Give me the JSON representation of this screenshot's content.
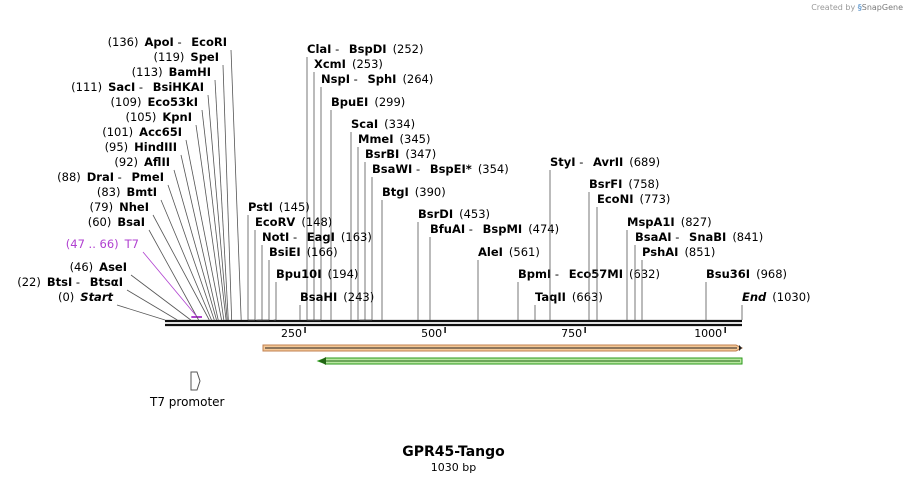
{
  "credit": {
    "text": "Created by",
    "brand": "SnapGene"
  },
  "sequence": {
    "name": "GPR45-Tango",
    "length_label": "1030 bp",
    "length": 1030
  },
  "axis_ticks": [
    "250",
    "500",
    "750",
    "1000"
  ],
  "feature_label": "T7 promoter",
  "colors": {
    "magenta": "#b040d0",
    "orange_fill": "#f5c896",
    "orange_stroke": "#c08050",
    "green_fill": "#b8e6a0",
    "green_stroke": "#2a9a1a",
    "line": "#555555"
  },
  "sites": [
    {
      "left": [
        {
          "t": "(136)"
        },
        {
          "t": "ApoI",
          "b": 1
        },
        {
          "t": " - "
        },
        {
          "t": "EcoRI",
          "b": 1
        }
      ],
      "pos": 136
    },
    {
      "left": [
        {
          "t": "(119)"
        },
        {
          "t": "SpeI",
          "b": 1
        }
      ],
      "pos": 119
    },
    {
      "left": [
        {
          "t": "(113)"
        },
        {
          "t": "BamHI",
          "b": 1
        }
      ],
      "pos": 113
    },
    {
      "left": [
        {
          "t": "(111)"
        },
        {
          "t": "SacI",
          "b": 1
        },
        {
          "t": " - "
        },
        {
          "t": "BsiHKAI",
          "b": 1
        }
      ],
      "pos": 111
    },
    {
      "left": [
        {
          "t": "(109)"
        },
        {
          "t": "Eco53kI",
          "b": 1
        }
      ],
      "pos": 109
    },
    {
      "left": [
        {
          "t": "(105)"
        },
        {
          "t": "KpnI",
          "b": 1
        }
      ],
      "pos": 105
    },
    {
      "left": [
        {
          "t": "(101)"
        },
        {
          "t": "Acc65I",
          "b": 1
        }
      ],
      "pos": 101
    },
    {
      "left": [
        {
          "t": "(95)"
        },
        {
          "t": "HindIII",
          "b": 1
        }
      ],
      "pos": 95
    },
    {
      "left": [
        {
          "t": "(92)"
        },
        {
          "t": "AflII",
          "b": 1
        }
      ],
      "pos": 92
    },
    {
      "left": [
        {
          "t": "(88)"
        },
        {
          "t": "DraI",
          "b": 1
        },
        {
          "t": " - "
        },
        {
          "t": "PmeI",
          "b": 1
        }
      ],
      "pos": 88
    },
    {
      "left": [
        {
          "t": "(83)"
        },
        {
          "t": "BmtI",
          "b": 1
        }
      ],
      "pos": 83
    },
    {
      "left": [
        {
          "t": "(79)"
        },
        {
          "t": "NheI",
          "b": 1
        }
      ],
      "pos": 79
    },
    {
      "left": [
        {
          "t": "(60)"
        },
        {
          "t": "BsaI",
          "b": 1
        }
      ],
      "pos": 60
    },
    {
      "left": [
        {
          "t": "(47 .. 66)",
          "c": "magenta"
        },
        {
          "t": "T7",
          "c": "magenta"
        }
      ],
      "pos": 56,
      "magenta": 1
    },
    {
      "left": [
        {
          "t": "(46)"
        },
        {
          "t": "AseI",
          "b": 1
        }
      ],
      "pos": 46
    },
    {
      "left": [
        {
          "t": "(22)"
        },
        {
          "t": "BtsI",
          "b": 1
        },
        {
          "t": " - "
        },
        {
          "t": "BtsαI",
          "b": 1
        }
      ],
      "pos": 22
    },
    {
      "left": [
        {
          "t": "(0)"
        },
        {
          "t": "Start",
          "b": 1,
          "i": 1
        }
      ],
      "pos": 0
    },
    {
      "right": [
        {
          "t": "ClaI",
          "b": 1
        },
        {
          "t": " - "
        },
        {
          "t": "BspDI",
          "b": 1
        },
        {
          "t": "(252)"
        }
      ],
      "pos": 252
    },
    {
      "right": [
        {
          "t": "XcmI",
          "b": 1
        },
        {
          "t": "(253)"
        }
      ],
      "pos": 253
    },
    {
      "right": [
        {
          "t": "NspI",
          "b": 1
        },
        {
          "t": " - "
        },
        {
          "t": "SphI",
          "b": 1
        },
        {
          "t": "(264)"
        }
      ],
      "pos": 264
    },
    {
      "right": [
        {
          "t": "BpuEI",
          "b": 1
        },
        {
          "t": "(299)"
        }
      ],
      "pos": 299
    },
    {
      "right": [
        {
          "t": "ScaI",
          "b": 1
        },
        {
          "t": "(334)"
        }
      ],
      "pos": 334
    },
    {
      "right": [
        {
          "t": "MmeI",
          "b": 1
        },
        {
          "t": "(345)"
        }
      ],
      "pos": 345
    },
    {
      "right": [
        {
          "t": "BsrBI",
          "b": 1
        },
        {
          "t": "(347)"
        }
      ],
      "pos": 347
    },
    {
      "right": [
        {
          "t": "BsaWI",
          "b": 1
        },
        {
          "t": " - "
        },
        {
          "t": "BspEI",
          "b": 1
        },
        {
          "t": "*",
          "b": 1
        },
        {
          "t": "(354)"
        }
      ],
      "pos": 354
    },
    {
      "right": [
        {
          "t": "BtgI",
          "b": 1
        },
        {
          "t": "(390)"
        }
      ],
      "pos": 390
    },
    {
      "right": [
        {
          "t": "PstI",
          "b": 1
        },
        {
          "t": "(145)"
        }
      ],
      "pos": 145
    },
    {
      "right": [
        {
          "t": "EcoRV",
          "b": 1
        },
        {
          "t": "(148)"
        }
      ],
      "pos": 148
    },
    {
      "right": [
        {
          "t": "NotI",
          "b": 1
        },
        {
          "t": " - "
        },
        {
          "t": "EagI",
          "b": 1
        },
        {
          "t": "(163)"
        }
      ],
      "pos": 163
    },
    {
      "right": [
        {
          "t": "BsiEI",
          "b": 1
        },
        {
          "t": "(166)"
        }
      ],
      "pos": 166
    },
    {
      "right": [
        {
          "t": "Bpu10I",
          "b": 1
        },
        {
          "t": "(194)"
        }
      ],
      "pos": 194
    },
    {
      "right": [
        {
          "t": "BsaHI",
          "b": 1
        },
        {
          "t": "(243)"
        }
      ],
      "pos": 243
    },
    {
      "right": [
        {
          "t": "BsrDI",
          "b": 1
        },
        {
          "t": "(453)"
        }
      ],
      "pos": 453
    },
    {
      "right": [
        {
          "t": "BfuAI",
          "b": 1
        },
        {
          "t": " - "
        },
        {
          "t": "BspMI",
          "b": 1
        },
        {
          "t": "(474)"
        }
      ],
      "pos": 474
    },
    {
      "right": [
        {
          "t": "AleI",
          "b": 1
        },
        {
          "t": "(561)"
        }
      ],
      "pos": 561
    },
    {
      "right": [
        {
          "t": "BpmI",
          "b": 1
        },
        {
          "t": " - "
        },
        {
          "t": "Eco57MI",
          "b": 1
        },
        {
          "t": "(632)"
        }
      ],
      "pos": 632
    },
    {
      "right": [
        {
          "t": "TaqII",
          "b": 1
        },
        {
          "t": "(663)"
        }
      ],
      "pos": 663
    },
    {
      "right": [
        {
          "t": "StyI",
          "b": 1
        },
        {
          "t": " - "
        },
        {
          "t": "AvrII",
          "b": 1
        },
        {
          "t": "(689)"
        }
      ],
      "pos": 689
    },
    {
      "right": [
        {
          "t": "BsrFI",
          "b": 1
        },
        {
          "t": "(758)"
        }
      ],
      "pos": 758
    },
    {
      "right": [
        {
          "t": "EcoNI",
          "b": 1
        },
        {
          "t": "(773)"
        }
      ],
      "pos": 773
    },
    {
      "right": [
        {
          "t": "MspA1I",
          "b": 1
        },
        {
          "t": "(827)"
        }
      ],
      "pos": 827
    },
    {
      "right": [
        {
          "t": "BsaAI",
          "b": 1
        },
        {
          "t": " - "
        },
        {
          "t": "SnaBI",
          "b": 1
        },
        {
          "t": "(841)"
        }
      ],
      "pos": 841
    },
    {
      "right": [
        {
          "t": "PshAI",
          "b": 1
        },
        {
          "t": "(851)"
        }
      ],
      "pos": 851
    },
    {
      "right": [
        {
          "t": "Bsu36I",
          "b": 1
        },
        {
          "t": "(968)"
        }
      ],
      "pos": 968
    },
    {
      "right": [
        {
          "t": "End",
          "b": 1,
          "i": 1
        },
        {
          "t": "(1030)"
        }
      ],
      "pos": 1030
    }
  ]
}
